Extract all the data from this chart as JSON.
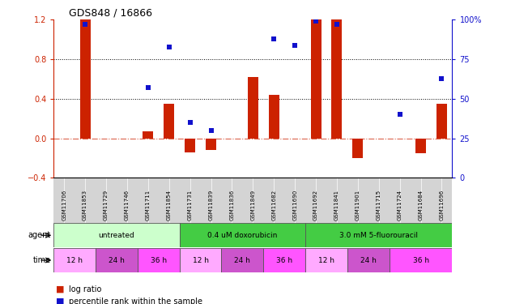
{
  "title": "GDS848 / 16866",
  "samples": [
    "GSM11706",
    "GSM11853",
    "GSM11729",
    "GSM11746",
    "GSM11711",
    "GSM11854",
    "GSM11731",
    "GSM11839",
    "GSM11836",
    "GSM11849",
    "GSM11682",
    "GSM11690",
    "GSM11692",
    "GSM11841",
    "GSM11901",
    "GSM11715",
    "GSM11724",
    "GSM11684",
    "GSM11696"
  ],
  "log_ratios": [
    0.0,
    1.2,
    0.0,
    0.0,
    0.07,
    0.35,
    -0.14,
    -0.12,
    0.0,
    0.62,
    0.44,
    0.0,
    1.2,
    1.2,
    -0.2,
    0.0,
    0.0,
    -0.15,
    0.35
  ],
  "percentile_ranks": [
    null,
    97,
    null,
    null,
    57,
    83,
    35,
    30,
    null,
    null,
    88,
    84,
    99,
    97,
    null,
    null,
    40,
    null,
    63
  ],
  "bar_color": "#cc2200",
  "dot_color": "#1111cc",
  "ylim_left": [
    -0.4,
    1.2
  ],
  "ylim_right": [
    0,
    100
  ],
  "yticks_left": [
    -0.4,
    0.0,
    0.4,
    0.8,
    1.2
  ],
  "yticks_right": [
    0,
    25,
    50,
    75,
    100
  ],
  "grid_vals": [
    0.4,
    0.8
  ],
  "agent_groups": [
    {
      "label": "untreated",
      "start": 0,
      "end": 6,
      "color": "#ccffcc"
    },
    {
      "label": "0.4 uM doxorubicin",
      "start": 6,
      "end": 12,
      "color": "#44cc44"
    },
    {
      "label": "3.0 mM 5-fluorouracil",
      "start": 12,
      "end": 19,
      "color": "#44cc44"
    }
  ],
  "time_groups": [
    {
      "label": "12 h",
      "start": 0,
      "end": 2,
      "color": "#ffaaff"
    },
    {
      "label": "24 h",
      "start": 2,
      "end": 4,
      "color": "#cc55cc"
    },
    {
      "label": "36 h",
      "start": 4,
      "end": 6,
      "color": "#ff55ff"
    },
    {
      "label": "12 h",
      "start": 6,
      "end": 8,
      "color": "#ffaaff"
    },
    {
      "label": "24 h",
      "start": 8,
      "end": 10,
      "color": "#cc55cc"
    },
    {
      "label": "36 h",
      "start": 10,
      "end": 12,
      "color": "#ff55ff"
    },
    {
      "label": "12 h",
      "start": 12,
      "end": 14,
      "color": "#ffaaff"
    },
    {
      "label": "24 h",
      "start": 14,
      "end": 16,
      "color": "#cc55cc"
    },
    {
      "label": "36 h",
      "start": 16,
      "end": 19,
      "color": "#ff55ff"
    }
  ]
}
